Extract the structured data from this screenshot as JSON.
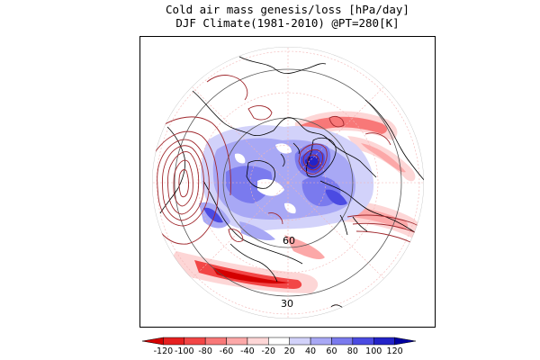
{
  "title": {
    "line1": "Cold air mass genesis/loss [hPa/day]",
    "line2": "DJF Climate(1981-2010) @PT=280[K]"
  },
  "map": {
    "projection": "north-polar-stereographic",
    "latitude_labels": [
      "60",
      "30"
    ]
  },
  "colorbar": {
    "labels": [
      "-120",
      "-100",
      "-80",
      "-60",
      "-40",
      "-20",
      "20",
      "40",
      "60",
      "80",
      "100",
      "120"
    ],
    "colors": [
      "#d40000",
      "#e62020",
      "#f24646",
      "#f87878",
      "#fca8a8",
      "#fdd6d6",
      "#ffffff",
      "#d2d2fa",
      "#a8a8f5",
      "#7a7aee",
      "#4b4be2",
      "#2323c8",
      "#0000a0"
    ]
  },
  "styles": {
    "contour_color": "#a0282d",
    "coast_color": "#000000"
  }
}
